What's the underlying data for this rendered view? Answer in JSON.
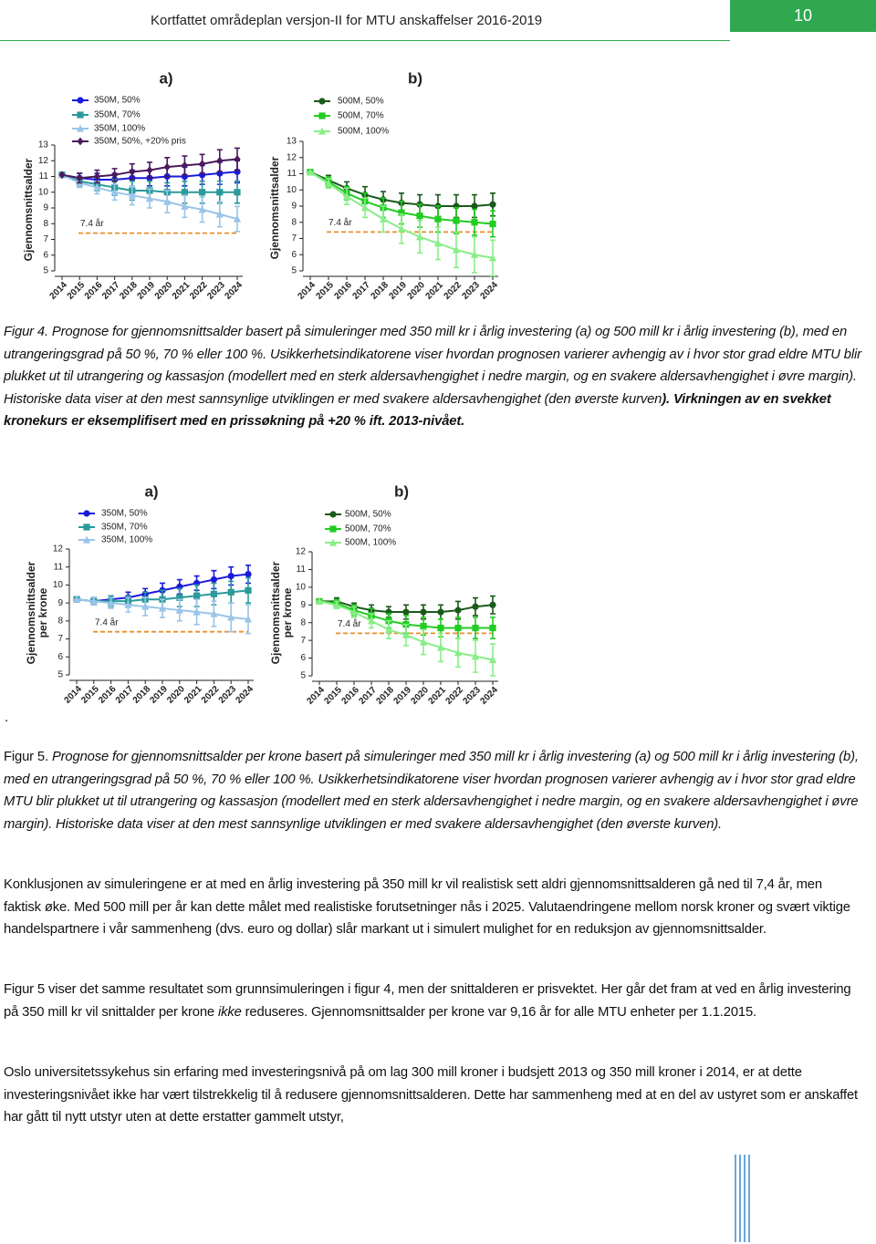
{
  "header": {
    "title": "Kortfattet områdeplan versjon-II for MTU anskaffelser 2016-2019",
    "page": "10"
  },
  "chart_data": [
    {
      "type": "line",
      "panel": "a)",
      "ylabel": [
        "Gjennomsnittsalder"
      ],
      "categories": [
        2014,
        2015,
        2016,
        2017,
        2018,
        2019,
        2020,
        2021,
        2022,
        2023,
        2024
      ],
      "ylim": [
        5,
        13
      ],
      "yticks": [
        5,
        6,
        7,
        8,
        9,
        10,
        11,
        12,
        13
      ],
      "reference": {
        "value": 7.4,
        "label": "7.4 år",
        "color": "#e8902a"
      },
      "series": [
        {
          "name": "350M, 50%",
          "color": "#1a1adb",
          "marker": "circle",
          "values": [
            11.1,
            10.9,
            10.8,
            10.8,
            10.9,
            10.9,
            11.0,
            11.0,
            11.1,
            11.2,
            11.3
          ],
          "errors": [
            0,
            0.3,
            0.4,
            0.4,
            0.5,
            0.5,
            0.6,
            0.6,
            0.6,
            0.7,
            0.7
          ]
        },
        {
          "name": "350M, 70%",
          "color": "#2a9a9a",
          "marker": "square",
          "values": [
            11.1,
            10.7,
            10.5,
            10.3,
            10.1,
            10.1,
            10.0,
            10.0,
            10.0,
            10.0,
            10.0
          ],
          "errors": [
            0,
            0.3,
            0.4,
            0.5,
            0.6,
            0.6,
            0.6,
            0.7,
            0.7,
            0.7,
            0.7
          ]
        },
        {
          "name": "350M, 100%",
          "color": "#9ac4e8",
          "marker": "triangle",
          "values": [
            11.1,
            10.6,
            10.3,
            10.0,
            9.8,
            9.6,
            9.4,
            9.1,
            8.9,
            8.6,
            8.3
          ],
          "errors": [
            0,
            0.3,
            0.4,
            0.5,
            0.6,
            0.6,
            0.7,
            0.7,
            0.8,
            0.8,
            0.8
          ]
        },
        {
          "name": "350M, 50%, +20% pris",
          "color": "#4a1a5a",
          "marker": "diamond",
          "values": [
            11.1,
            10.9,
            11.0,
            11.1,
            11.3,
            11.4,
            11.6,
            11.7,
            11.8,
            12.0,
            12.1
          ],
          "errors": [
            0,
            0.3,
            0.4,
            0.4,
            0.5,
            0.5,
            0.6,
            0.6,
            0.6,
            0.7,
            0.7
          ]
        }
      ]
    },
    {
      "type": "line",
      "panel": "b)",
      "ylabel": [
        "Gjennomsnittsalder"
      ],
      "categories": [
        2014,
        2015,
        2016,
        2017,
        2018,
        2019,
        2020,
        2021,
        2022,
        2023,
        2024
      ],
      "ylim": [
        5,
        13
      ],
      "yticks": [
        5,
        6,
        7,
        8,
        9,
        10,
        11,
        12,
        13
      ],
      "reference": {
        "value": 7.4,
        "label": "7.4 år",
        "color": "#e8902a"
      },
      "series": [
        {
          "name": "500M, 50%",
          "color": "#1a5a1a",
          "marker": "circle",
          "values": [
            11.1,
            10.6,
            10.1,
            9.7,
            9.4,
            9.2,
            9.1,
            9.0,
            9.0,
            9.0,
            9.1
          ],
          "errors": [
            0,
            0.3,
            0.4,
            0.5,
            0.5,
            0.6,
            0.6,
            0.7,
            0.7,
            0.7,
            0.7
          ]
        },
        {
          "name": "500M, 70%",
          "color": "#22cc22",
          "marker": "square",
          "values": [
            11.1,
            10.5,
            9.8,
            9.3,
            8.9,
            8.6,
            8.4,
            8.2,
            8.1,
            8.0,
            7.9
          ],
          "errors": [
            0,
            0.3,
            0.4,
            0.5,
            0.6,
            0.7,
            0.7,
            0.8,
            0.8,
            0.8,
            0.8
          ]
        },
        {
          "name": "500M, 100%",
          "color": "#88ee88",
          "marker": "triangle",
          "values": [
            11.1,
            10.4,
            9.6,
            8.9,
            8.2,
            7.6,
            7.1,
            6.7,
            6.3,
            6.0,
            5.8
          ],
          "errors": [
            0,
            0.3,
            0.5,
            0.6,
            0.8,
            0.9,
            1.0,
            1.0,
            1.1,
            1.1,
            1.1
          ]
        }
      ]
    },
    {
      "type": "line",
      "panel": "a)",
      "ylabel": [
        "Gjennomsnittsalder",
        "per krone"
      ],
      "categories": [
        2014,
        2015,
        2016,
        2017,
        2018,
        2019,
        2020,
        2021,
        2022,
        2023,
        2024
      ],
      "ylim": [
        5,
        12
      ],
      "yticks": [
        5,
        6,
        7,
        8,
        9,
        10,
        11,
        12
      ],
      "reference": {
        "value": 7.4,
        "label": "7.4 år",
        "color": "#e8902a"
      },
      "series": [
        {
          "name": "350M, 50%",
          "color": "#1a1adb",
          "marker": "circle",
          "values": [
            9.2,
            9.1,
            9.2,
            9.3,
            9.5,
            9.7,
            9.9,
            10.1,
            10.3,
            10.5,
            10.6
          ],
          "errors": [
            0,
            0.2,
            0.2,
            0.3,
            0.3,
            0.4,
            0.4,
            0.4,
            0.5,
            0.5,
            0.5
          ]
        },
        {
          "name": "350M, 70%",
          "color": "#2a9a9a",
          "marker": "square",
          "values": [
            9.2,
            9.1,
            9.1,
            9.1,
            9.2,
            9.2,
            9.3,
            9.4,
            9.5,
            9.6,
            9.7
          ],
          "errors": [
            0,
            0.2,
            0.3,
            0.3,
            0.4,
            0.5,
            0.5,
            0.6,
            0.6,
            0.6,
            0.7
          ]
        },
        {
          "name": "350M, 100%",
          "color": "#9ac4e8",
          "marker": "triangle",
          "values": [
            9.2,
            9.1,
            9.0,
            8.9,
            8.8,
            8.7,
            8.6,
            8.5,
            8.4,
            8.2,
            8.1
          ],
          "errors": [
            0,
            0.2,
            0.3,
            0.4,
            0.5,
            0.5,
            0.6,
            0.7,
            0.7,
            0.8,
            0.8
          ]
        }
      ]
    },
    {
      "type": "line",
      "panel": "b)",
      "ylabel": [
        "Gjennomsnittsalder",
        "per krone"
      ],
      "categories": [
        2014,
        2015,
        2016,
        2017,
        2018,
        2019,
        2020,
        2021,
        2022,
        2023,
        2024
      ],
      "ylim": [
        5,
        12
      ],
      "yticks": [
        5,
        6,
        7,
        8,
        9,
        10,
        11,
        12
      ],
      "reference": {
        "value": 7.4,
        "label": "7.4 år",
        "color": "#e8902a"
      },
      "series": [
        {
          "name": "500M, 50%",
          "color": "#1a5a1a",
          "marker": "circle",
          "values": [
            9.2,
            9.2,
            8.9,
            8.7,
            8.6,
            8.6,
            8.6,
            8.6,
            8.7,
            8.9,
            9.0
          ],
          "errors": [
            0,
            0.2,
            0.2,
            0.3,
            0.3,
            0.4,
            0.4,
            0.4,
            0.5,
            0.5,
            0.5
          ]
        },
        {
          "name": "500M, 70%",
          "color": "#22cc22",
          "marker": "square",
          "values": [
            9.2,
            9.1,
            8.7,
            8.4,
            8.1,
            7.9,
            7.8,
            7.7,
            7.7,
            7.7,
            7.7
          ],
          "errors": [
            0,
            0.2,
            0.3,
            0.4,
            0.4,
            0.5,
            0.5,
            0.5,
            0.6,
            0.6,
            0.6
          ]
        },
        {
          "name": "500M, 100%",
          "color": "#88ee88",
          "marker": "triangle",
          "values": [
            9.2,
            9.0,
            8.6,
            8.1,
            7.6,
            7.3,
            6.9,
            6.6,
            6.3,
            6.1,
            5.9
          ],
          "errors": [
            0,
            0.2,
            0.3,
            0.4,
            0.5,
            0.6,
            0.7,
            0.8,
            0.8,
            0.9,
            0.9
          ]
        }
      ]
    }
  ],
  "captions": [
    {
      "parts": [
        "Figur 4. Prognose for gjennomsnittsalder basert på simuleringer med 350 mill kr i årlig investering (a) og 500 mill kr i årlig investering (b), med en utrangeringsgrad på 50 %, 70 % eller 100 %. Usikkerhetsindikatorene viser hvordan prognosen varierer avhengig av i hvor stor grad eldre MTU blir plukket ut til utrangering og kassasjon (modellert med en sterk aldersavhengighet i nedre margin, og en svakere aldersavhengighet i øvre margin). Historiske data viser at den mest sannsynlige utviklingen er med svakere aldersavhengighet (den øverste kurven",
        "). Virkningen av en svekket kronekurs er eksemplifisert med en prissøkning på +20 % ift. 2013-nivået."
      ]
    },
    {
      "parts": [
        "Figur 5. ",
        "Prognose for gjennomsnittsalder per krone basert på simuleringer med 350 mill kr i årlig investering (a) og 500 mill kr i årlig investering (b), med en utrangeringsgrad på 50 %, 70 % eller 100 %. Usikkerhetsindikatorene viser hvordan prognosen varierer avhengig av i hvor stor grad eldre MTU blir plukket ut til utrangering og kassasjon (modellert med en sterk aldersavhengighet i nedre margin, og en svakere aldersavhengighet i øvre margin). Historiske data viser at den mest sannsynlige utviklingen er med svakere aldersavhengighet (den øverste kurven)."
      ]
    }
  ],
  "stray_mark": ".",
  "paragraphs": [
    {
      "parts": [
        "Konklusjonen av simuleringene er at med en årlig investering på 350 mill kr vil realistisk sett aldri gjennomsnittsalderen gå ned til 7,4 år, men faktisk øke. Med 500 mill per år kan dette målet med realistiske forutsetninger nås i 2025. Valutaendringene mellom norsk kroner og svært viktige handelspartnere i vår sammenheng (dvs. euro og dollar) slår markant ut i simulert mulighet for en reduksjon av gjennomsnittsalder."
      ]
    },
    {
      "parts": [
        "Figur 5 viser det samme resultatet som grunnsimuleringen  i figur 4, men der snittalderen er prisvektet. Her går det fram at ved en årlig investering på 350 mill kr vil snittalder per krone ",
        "ikke",
        " reduseres. Gjennomsnittsalder per krone var 9,16 år for alle MTU enheter per 1.1.2015."
      ]
    },
    {
      "parts": [
        "Oslo universitetssykehus sin erfaring med investeringsnivå på om lag 300 mill kroner i budsjett 2013 og 350 mill kroner i 2014, er at dette investeringsnivået ikke har vært tilstrekkelig til å redusere gjennomsnittsalderen. Dette har sammenheng med at en del av ustyret som er anskaffet har gått til nytt utstyr uten at dette erstatter gammelt utstyr,"
      ]
    }
  ]
}
